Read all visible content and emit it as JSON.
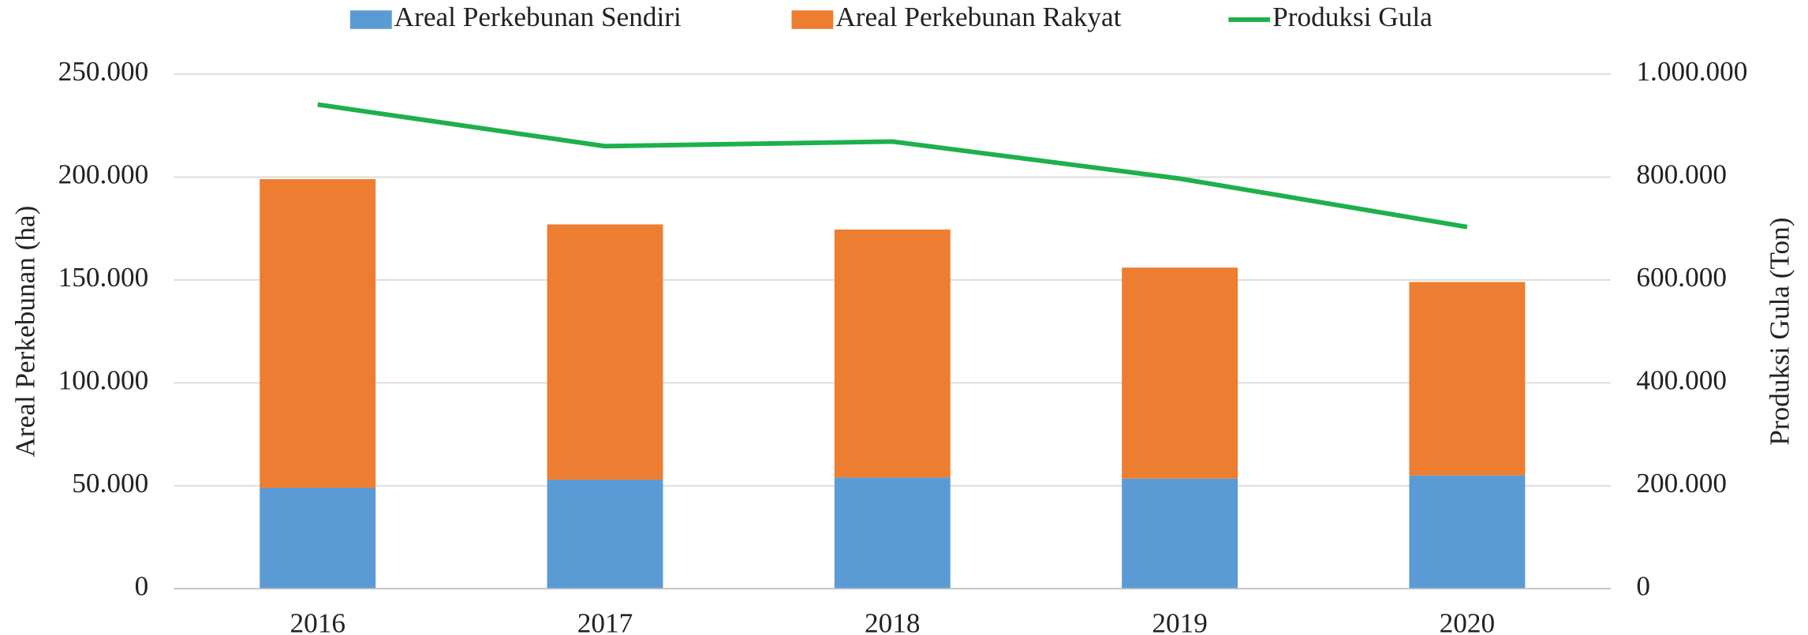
{
  "chart_data": {
    "type": "bar",
    "categories": [
      "2016",
      "2017",
      "2018",
      "2019",
      "2020"
    ],
    "y_label": "Areal Perkebunan (ha)",
    "y2_label": "Produksi Gula (Ton)",
    "series": [
      {
        "name": "Areal Perkebunan Sendiri",
        "color": "#5b9bd5",
        "type": "bar",
        "values": [
          49000,
          53000,
          54000,
          53500,
          55000
        ]
      },
      {
        "name": "Areal Perkebunan Rakyat",
        "color": "#ed7d31",
        "type": "bar",
        "values": [
          150000,
          124000,
          120500,
          102500,
          94000
        ]
      },
      {
        "name": "Produksi Gula",
        "color": "#1db04b",
        "type": "line",
        "axis": "y2",
        "values": [
          941000,
          860000,
          869000,
          797000,
          703000
        ]
      }
    ],
    "stacked": true,
    "ylim": [
      0,
      250000
    ],
    "yticks": [
      0,
      {
        "value": 50000,
        "label": "50.000"
      },
      {
        "value": 100000,
        "label": "100.000"
      },
      {
        "value": 150000,
        "label": "150.000"
      },
      {
        "value": 200000,
        "label": "200.000"
      },
      {
        "value": 250000,
        "label": "250.000"
      }
    ],
    "y2lim": [
      0,
      1000000
    ],
    "y2ticks": [
      0,
      {
        "value": 200000,
        "label": "200.000"
      },
      {
        "value": 400000,
        "label": "400.000"
      },
      {
        "value": 600000,
        "label": "600.000"
      },
      {
        "value": 800000,
        "label": "800.000"
      },
      {
        "value": 1000000,
        "label": "1.000.000"
      }
    ],
    "grid": true,
    "legend": "top"
  }
}
